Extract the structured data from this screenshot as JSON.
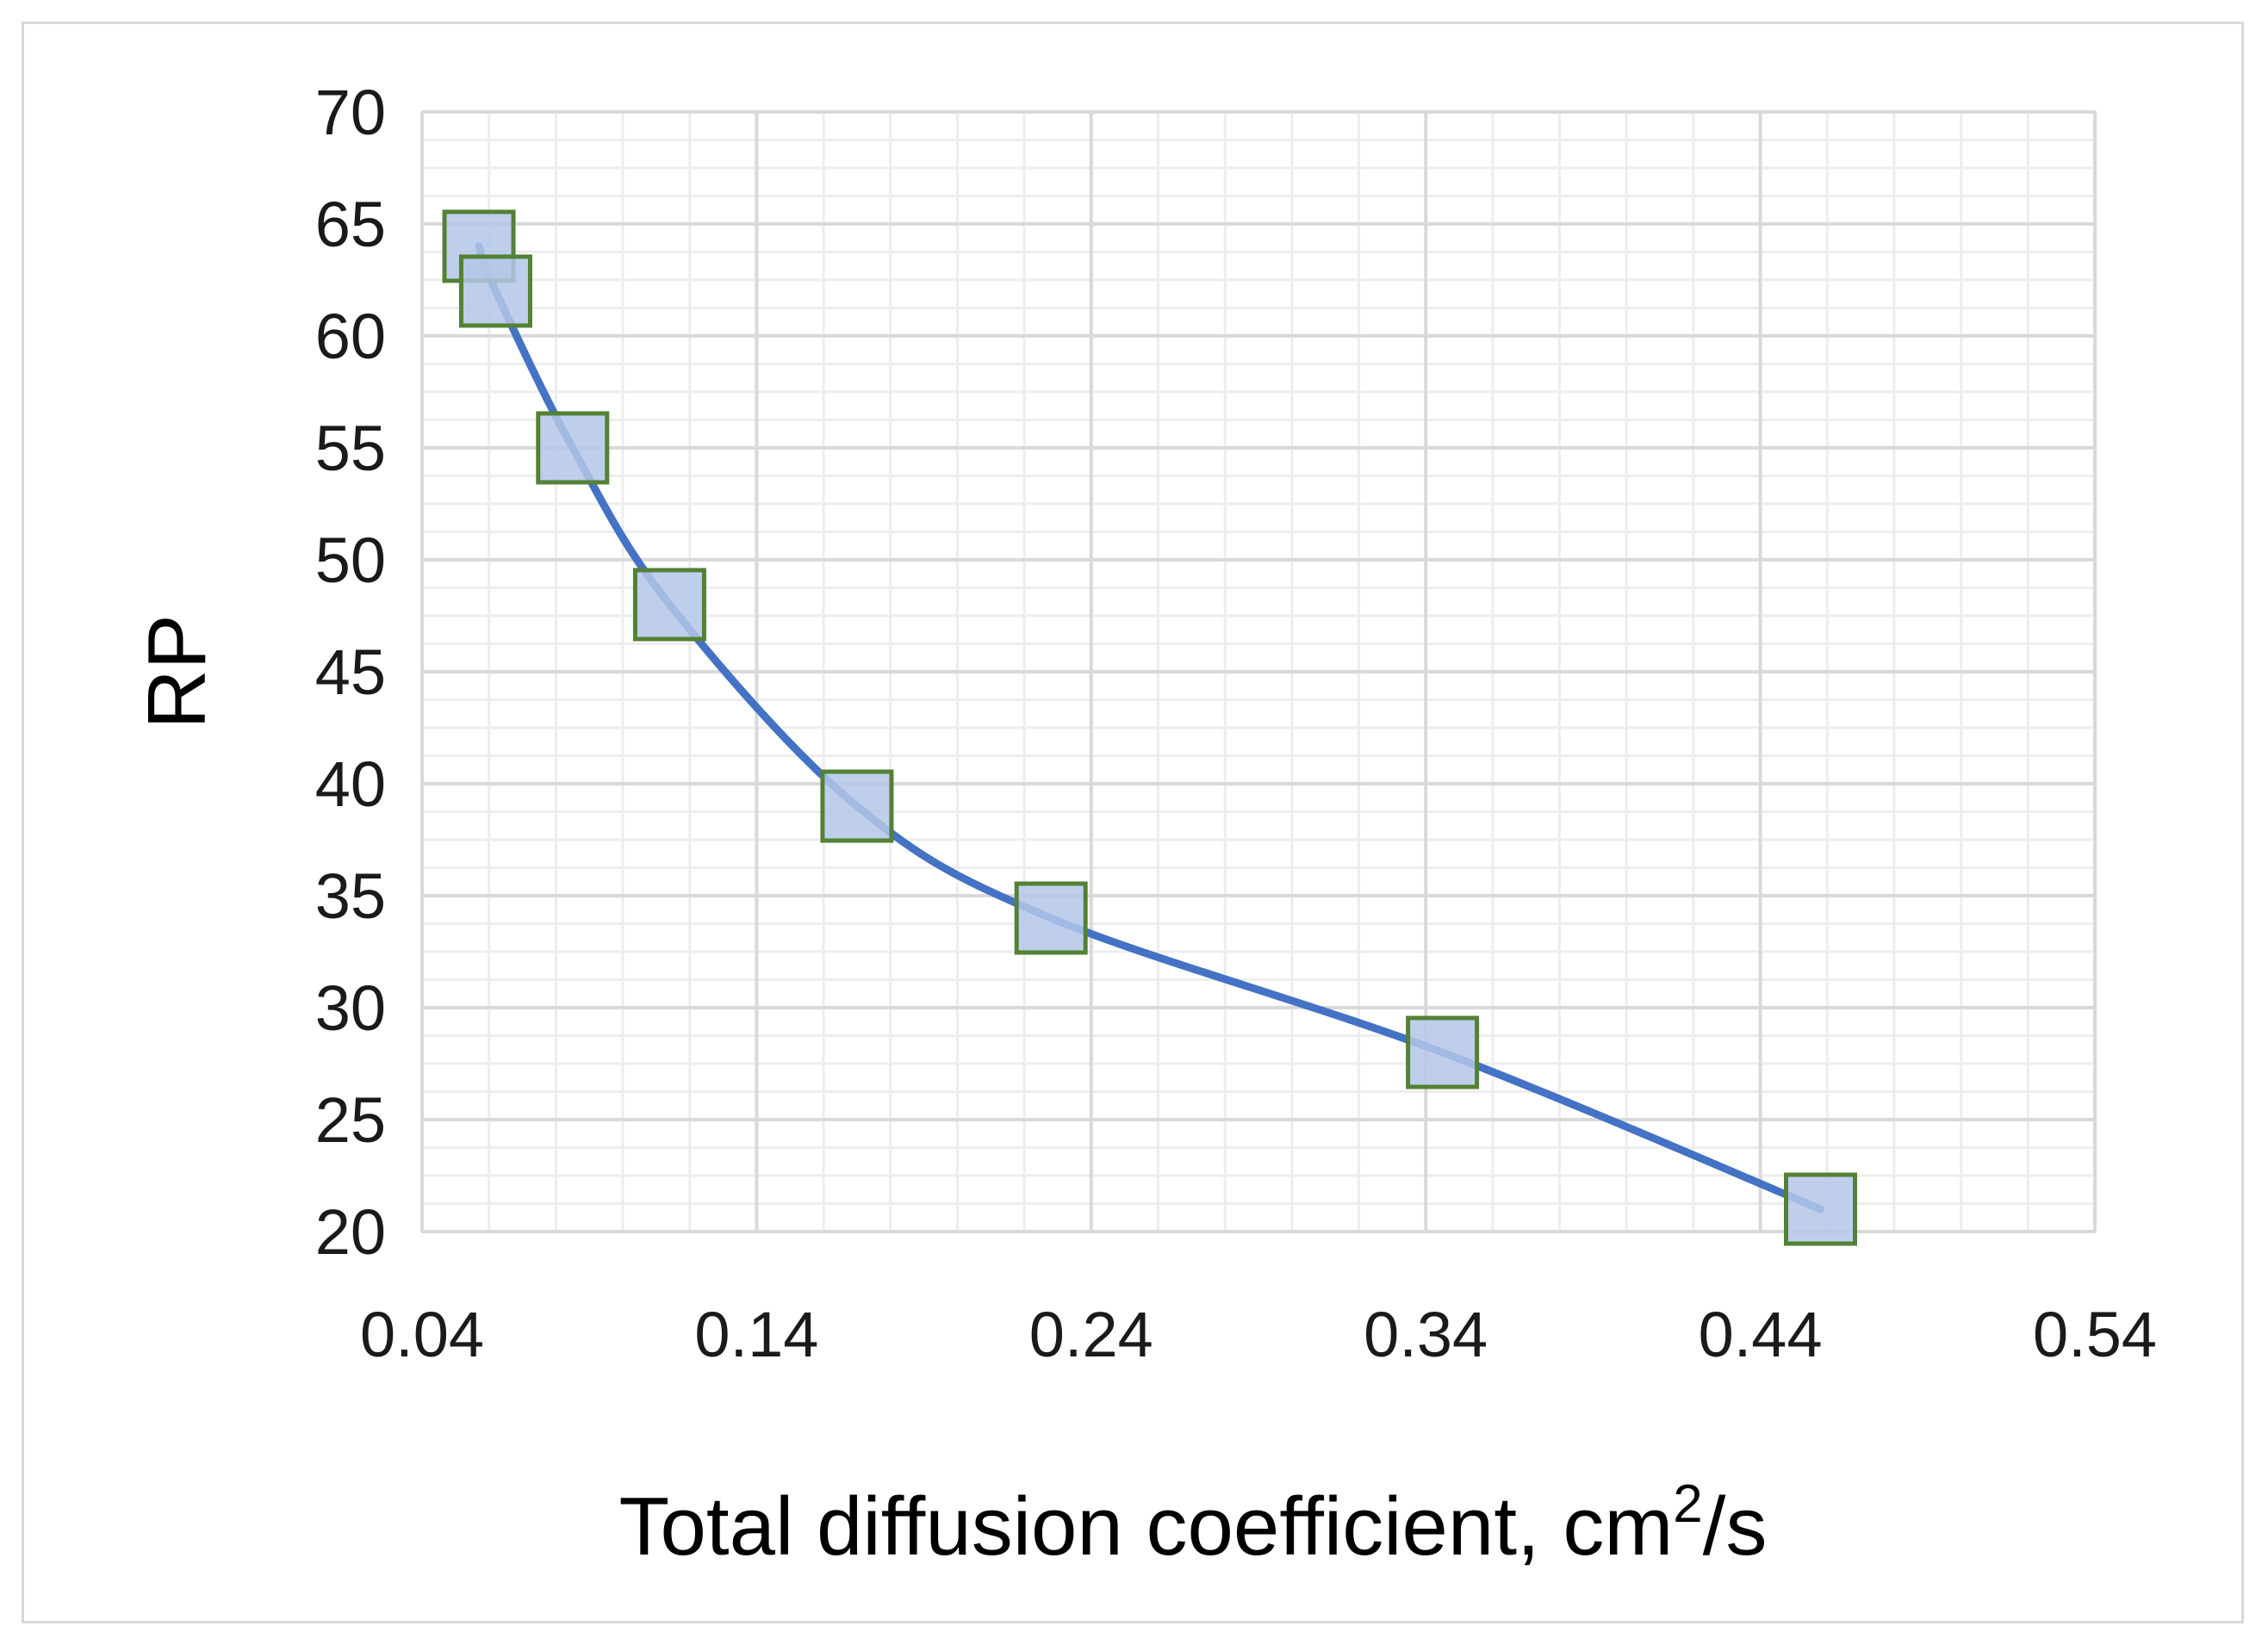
{
  "chart_data": {
    "type": "scatter",
    "title": "",
    "xlabel": "Total diffusion coefficient, cm",
    "xlabel_superscript": "2",
    "xlabel_suffix": "/s",
    "ylabel": "RP",
    "xlim": [
      0.04,
      0.54
    ],
    "ylim": [
      20,
      70
    ],
    "x_ticks": [
      0.04,
      0.14,
      0.24,
      0.34,
      0.44,
      0.54
    ],
    "x_tick_labels": [
      "0.04",
      "0.14",
      "0.24",
      "0.34",
      "0.44",
      "0.54"
    ],
    "y_ticks": [
      20,
      25,
      30,
      35,
      40,
      45,
      50,
      55,
      60,
      65,
      70
    ],
    "y_tick_labels": [
      "20",
      "25",
      "30",
      "35",
      "40",
      "45",
      "50",
      "55",
      "60",
      "65",
      "70"
    ],
    "grid": true,
    "legend": "none",
    "series": [
      {
        "marker": "square",
        "marker_fill": "#b4c7e7",
        "marker_edge": "#538135",
        "line_color": "#4472c4",
        "smooth": true,
        "x": [
          0.057,
          0.062,
          0.085,
          0.114,
          0.17,
          0.228,
          0.345,
          0.458
        ],
        "y": [
          64,
          62,
          55,
          48,
          39,
          34,
          28,
          21
        ]
      }
    ]
  }
}
